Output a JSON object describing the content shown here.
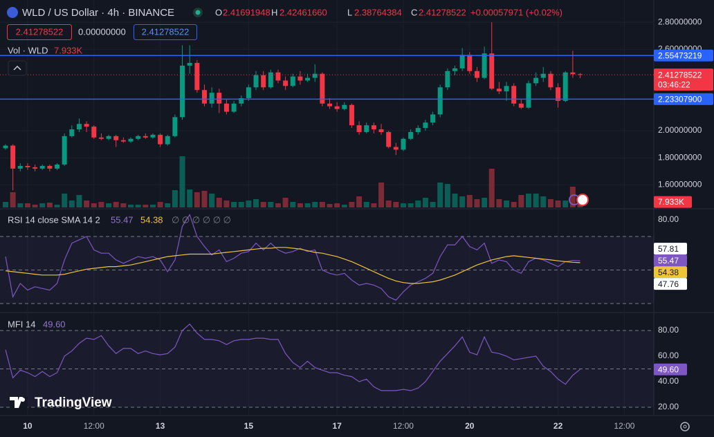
{
  "header": {
    "symbol": "WLD / US Dollar · 4h · BINANCE",
    "ohlc": [
      {
        "key": "O",
        "value": "2.41691948"
      },
      {
        "key": "H",
        "value": "2.42461660"
      },
      {
        "key": "L",
        "value": "2.38764384"
      },
      {
        "key": "C",
        "value": "2.41278522"
      }
    ],
    "change": "+0.00057971 (+0.02%)",
    "sell": "2.41278522",
    "spread": "0.00000000",
    "buy": "2.41278522",
    "countdown": "03:46:22",
    "logo": "TradingView"
  },
  "chart_data": [
    {
      "type": "candlestick",
      "up_color": "#089981",
      "down_color": "#f23645",
      "grid": true,
      "xlim": [
        -0.75,
        88
      ],
      "ylim": [
        1.4337,
        2.9643
      ],
      "xticks": [
        {
          "value": 3,
          "label": "10"
        },
        {
          "value": 12,
          "label": "12:00"
        },
        {
          "value": 21,
          "label": "13"
        },
        {
          "value": 33,
          "label": "15"
        },
        {
          "value": 45,
          "label": "17"
        },
        {
          "value": 54,
          "label": "12:00"
        },
        {
          "value": 63,
          "label": "20"
        },
        {
          "value": 75,
          "label": "22"
        },
        {
          "value": 84,
          "label": "12:00"
        }
      ],
      "yticks": [
        {
          "value": 2.8,
          "label": "2.80000000"
        },
        {
          "value": 2.6,
          "label": "2.60000000"
        },
        {
          "value": 2.0,
          "label": "2.00000000"
        },
        {
          "value": 1.8,
          "label": "1.80000000"
        },
        {
          "value": 1.6,
          "label": "1.60000000"
        }
      ],
      "lines": [
        {
          "value": 2.55473219,
          "label": "2.55473219",
          "color": "#2962ff"
        },
        {
          "value": 2.233079,
          "label": "2.23307900",
          "color": "#2962ff"
        }
      ],
      "open": [
        1.87,
        1.89,
        1.72,
        1.74,
        1.73,
        1.72,
        1.74,
        1.72,
        1.75,
        1.96,
        2.01,
        2.05,
        2.03,
        1.95,
        1.94,
        1.96,
        1.93,
        1.92,
        1.94,
        1.96,
        1.95,
        1.97,
        1.9,
        1.96,
        2.1,
        2.48,
        2.5,
        2.3,
        2.2,
        2.28,
        2.2,
        2.14,
        2.2,
        2.24,
        2.32,
        2.41,
        2.32,
        2.43,
        2.37,
        2.33,
        2.4,
        2.37,
        2.39,
        2.42,
        2.2,
        2.18,
        2.16,
        2.19,
        2.04,
        1.99,
        2.04,
        2.01,
        1.99,
        1.88,
        1.86,
        1.94,
        1.99,
        2.02,
        2.06,
        2.12,
        2.32,
        2.44,
        2.46,
        2.56,
        2.44,
        2.39,
        2.57,
        2.31,
        2.29,
        2.33,
        2.2,
        2.17,
        2.35,
        2.39,
        2.42,
        2.32,
        2.22,
        2.43,
        2.41691948
      ],
      "high": [
        1.9,
        1.9,
        1.76,
        1.76,
        1.75,
        1.75,
        1.75,
        1.76,
        1.98,
        2.04,
        2.09,
        2.07,
        2.04,
        1.98,
        1.97,
        1.97,
        1.95,
        1.95,
        1.97,
        1.98,
        1.98,
        1.98,
        1.97,
        2.12,
        2.63,
        2.63,
        2.52,
        2.34,
        2.32,
        2.31,
        2.23,
        2.22,
        2.26,
        2.34,
        2.44,
        2.44,
        2.45,
        2.45,
        2.4,
        2.42,
        2.44,
        2.42,
        2.49,
        2.43,
        2.24,
        2.21,
        2.21,
        2.2,
        2.07,
        2.06,
        2.06,
        2.05,
        2.0,
        1.91,
        1.95,
        2.01,
        2.04,
        2.08,
        2.14,
        2.34,
        2.46,
        2.48,
        2.61,
        2.58,
        2.47,
        2.62,
        2.8,
        2.36,
        2.36,
        2.35,
        2.23,
        2.37,
        2.43,
        2.47,
        2.44,
        2.35,
        2.44,
        2.59,
        2.4246166
      ],
      "low": [
        1.86,
        1.56,
        1.7,
        1.71,
        1.7,
        1.71,
        1.7,
        1.71,
        1.74,
        1.95,
        1.99,
        1.99,
        1.94,
        1.93,
        1.93,
        1.88,
        1.91,
        1.91,
        1.93,
        1.94,
        1.94,
        1.88,
        1.89,
        1.95,
        2.08,
        2.42,
        2.28,
        2.18,
        2.17,
        2.13,
        2.12,
        2.13,
        2.18,
        2.22,
        2.3,
        2.3,
        2.31,
        2.35,
        2.3,
        2.32,
        2.34,
        2.36,
        2.36,
        2.18,
        2.16,
        2.14,
        2.15,
        2.02,
        1.97,
        1.98,
        1.98,
        1.97,
        1.87,
        1.82,
        1.85,
        1.93,
        1.97,
        2.0,
        2.04,
        2.1,
        2.3,
        2.41,
        2.44,
        2.42,
        2.36,
        2.38,
        2.3,
        2.27,
        2.22,
        2.18,
        2.16,
        2.16,
        2.33,
        2.36,
        2.3,
        2.17,
        2.21,
        2.39,
        2.38764384
      ],
      "close": [
        1.89,
        1.72,
        1.74,
        1.73,
        1.72,
        1.74,
        1.72,
        1.75,
        1.96,
        2.01,
        2.05,
        2.03,
        1.95,
        1.94,
        1.96,
        1.93,
        1.92,
        1.94,
        1.96,
        1.95,
        1.97,
        1.9,
        1.96,
        2.1,
        2.48,
        2.5,
        2.3,
        2.2,
        2.28,
        2.2,
        2.14,
        2.2,
        2.24,
        2.32,
        2.41,
        2.32,
        2.43,
        2.37,
        2.33,
        2.4,
        2.37,
        2.39,
        2.42,
        2.2,
        2.18,
        2.16,
        2.19,
        2.04,
        1.99,
        2.04,
        2.01,
        1.99,
        1.88,
        1.86,
        1.94,
        1.99,
        2.02,
        2.06,
        2.12,
        2.32,
        2.44,
        2.46,
        2.56,
        2.44,
        2.39,
        2.57,
        2.31,
        2.29,
        2.33,
        2.2,
        2.17,
        2.35,
        2.39,
        2.42,
        2.32,
        2.22,
        2.43,
        2.41691948,
        2.41278522
      ],
      "volume": {
        "name": "Vol · WLD",
        "value_label": "7.933K",
        "ylim": [
          0,
          300
        ],
        "up_color": "#0b5e55",
        "down_color": "#7a2b35",
        "values": [
          8,
          22,
          6,
          6,
          4,
          6,
          7,
          4,
          20,
          10,
          18,
          10,
          6,
          8,
          6,
          8,
          6,
          4,
          4,
          4,
          4,
          8,
          6,
          25,
          74,
          26,
          22,
          24,
          20,
          14,
          10,
          8,
          8,
          10,
          12,
          8,
          8,
          6,
          14,
          8,
          6,
          6,
          8,
          8,
          5,
          6,
          4,
          8,
          16,
          8,
          6,
          36,
          10,
          8,
          6,
          6,
          10,
          14,
          8,
          36,
          34,
          20,
          16,
          18,
          12,
          14,
          56,
          12,
          10,
          8,
          18,
          20,
          20,
          16,
          12,
          10,
          10,
          30,
          7.933
        ]
      }
    },
    {
      "type": "line",
      "title": "RSI 14 close SMA 14 2",
      "icons": "∅ ∅ ∅ ∅ ∅ ∅",
      "ylim": [
        25.46,
        85.67
      ],
      "yticks": [
        {
          "value": 80,
          "label": "80.00"
        }
      ],
      "levels": [
        70,
        50,
        30
      ],
      "band_color": "#7e57c2",
      "bb_upper": 57.81,
      "bb_lower": 47.76,
      "series": [
        {
          "color": "#7e57c2",
          "values": [
            58,
            34,
            42,
            38,
            40,
            39,
            38,
            42,
            56,
            66,
            68,
            70,
            62,
            60,
            60,
            56,
            54,
            56,
            58,
            57,
            58,
            56,
            49,
            56,
            76,
            83,
            70,
            64,
            59,
            62,
            55,
            57,
            60,
            61,
            66,
            62,
            66,
            62,
            60,
            61,
            63,
            61,
            62,
            50,
            48,
            47,
            48,
            44,
            41,
            42,
            41,
            39,
            34,
            32,
            37,
            41,
            43,
            45,
            48,
            58,
            65,
            65,
            70,
            64,
            62,
            66,
            54,
            56,
            55,
            50,
            48,
            55,
            57,
            56,
            54,
            52,
            55,
            55.7,
            55.47
          ]
        },
        {
          "color": "#f0c43a",
          "values": [
            49.5,
            49,
            48.5,
            48,
            47.5,
            47,
            47,
            47,
            47.5,
            48.5,
            49.5,
            50.5,
            51,
            51.5,
            52,
            52,
            52.5,
            53,
            54,
            55,
            56,
            57,
            58,
            58.5,
            59,
            59.5,
            59.5,
            59.5,
            59.5,
            60,
            60.5,
            61,
            61.5,
            62,
            62.5,
            63,
            63,
            63.5,
            63.5,
            63,
            62.5,
            61.5,
            60.5,
            60,
            59,
            58,
            56.5,
            55,
            53,
            51,
            49,
            47,
            45,
            43.5,
            42.5,
            42,
            42,
            42.5,
            43,
            44,
            45.5,
            47,
            49,
            51,
            53,
            54.5,
            56,
            57,
            58,
            58.5,
            58,
            57.5,
            57,
            56.5,
            56,
            55.5,
            55,
            54.6,
            54.38
          ]
        }
      ]
    },
    {
      "type": "line",
      "title": "MFI 14",
      "ylim": [
        14.05,
        92.97
      ],
      "last_label": "49.60",
      "yticks": [
        {
          "value": 80,
          "label": "80.00"
        },
        {
          "value": 60,
          "label": "60.00"
        },
        {
          "value": 40,
          "label": "40.00"
        },
        {
          "value": 20,
          "label": "20.00"
        }
      ],
      "levels": [
        80,
        50,
        20
      ],
      "band_color": "#7e57c2",
      "series": [
        {
          "color": "#7e57c2",
          "values": [
            65,
            43,
            49,
            47,
            44,
            48,
            44,
            47,
            60,
            64,
            70,
            74,
            73,
            76,
            68,
            62,
            66,
            66,
            62,
            64,
            62,
            61,
            62,
            67,
            80,
            85,
            78,
            73,
            73,
            72,
            69,
            72,
            73,
            73,
            74,
            74,
            73,
            73,
            62,
            55,
            51,
            56,
            51,
            49,
            47,
            47,
            45,
            44,
            40,
            42,
            36,
            33,
            33,
            33,
            34,
            33,
            35,
            40,
            48,
            56,
            62,
            68,
            75,
            63,
            61,
            75,
            63,
            62,
            60,
            57,
            58,
            59,
            60,
            52,
            48,
            42,
            38,
            45,
            49.6
          ]
        }
      ]
    }
  ]
}
